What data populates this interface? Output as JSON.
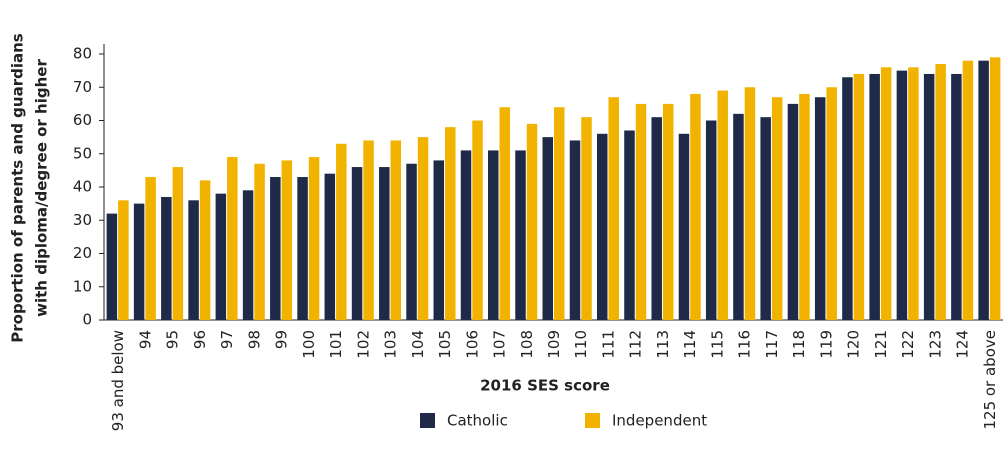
{
  "chart_data": {
    "type": "bar",
    "ylabel": [
      "Proportion of parents and guardians",
      "with diploma/degree or higher"
    ],
    "xlabel": "2016 SES score",
    "categories": [
      "93 and below",
      "94",
      "95",
      "96",
      "97",
      "98",
      "99",
      "100",
      "101",
      "102",
      "103",
      "104",
      "105",
      "106",
      "107",
      "108",
      "109",
      "110",
      "111",
      "112",
      "113",
      "114",
      "115",
      "116",
      "117",
      "118",
      "119",
      "120",
      "121",
      "122",
      "123",
      "124",
      "125 or above"
    ],
    "series": [
      {
        "name": "Catholic",
        "color": "#1e2a47",
        "values": [
          32,
          35,
          37,
          36,
          38,
          39,
          43,
          43,
          44,
          46,
          46,
          47,
          48,
          51,
          51,
          51,
          55,
          54,
          56,
          57,
          61,
          56,
          60,
          62,
          61,
          65,
          67,
          73,
          74,
          75,
          74,
          74,
          78
        ]
      },
      {
        "name": "Independent",
        "color": "#f2b300",
        "values": [
          36,
          43,
          46,
          42,
          49,
          47,
          48,
          49,
          53,
          54,
          54,
          55,
          58,
          60,
          64,
          59,
          64,
          61,
          67,
          65,
          65,
          68,
          69,
          70,
          67,
          68,
          70,
          74,
          76,
          76,
          77,
          78,
          79
        ]
      }
    ],
    "ylim": [
      0,
      80
    ],
    "yticks": [
      0,
      10,
      20,
      30,
      40,
      50,
      60,
      70,
      80
    ],
    "grid": false
  }
}
